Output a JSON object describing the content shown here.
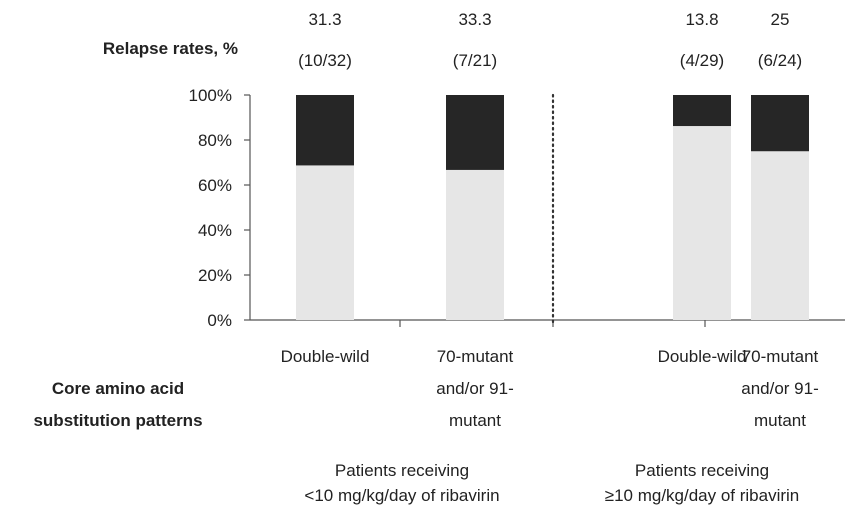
{
  "chart_data": {
    "type": "bar",
    "stacked": true,
    "y_axis": {
      "ticks": [
        "0%",
        "20%",
        "40%",
        "60%",
        "80%",
        "100%"
      ],
      "ylim": [
        0,
        100
      ],
      "grid": false
    },
    "relapse_row": {
      "title": "Relapse rates, %",
      "values": [
        "31.3",
        "33.3",
        "13.8",
        "25"
      ],
      "counts": [
        "(10/32)",
        "(7/21)",
        "(4/29)",
        "(6/24)"
      ]
    },
    "categories": [
      [
        "Double-wild"
      ],
      [
        "70-mutant",
        "and/or 91-",
        "mutant"
      ],
      [
        "Double-wild"
      ],
      [
        "70-mutant",
        "and/or 91-",
        "mutant"
      ]
    ],
    "category_axis_title": [
      "Core amino acid",
      "substitution patterns"
    ],
    "groups": [
      {
        "lines": [
          "Patients receiving",
          "<10 mg/kg/day of ribavirin"
        ],
        "category_indices": [
          0,
          1
        ]
      },
      {
        "lines": [
          "Patients receiving",
          "≥10 mg/kg/day of ribavirin"
        ],
        "category_indices": [
          2,
          3
        ]
      }
    ],
    "series": [
      {
        "values": [
          68.7,
          66.7,
          86.2,
          75
        ],
        "color": "#e6e6e6"
      },
      {
        "values": [
          31.3,
          33.3,
          13.8,
          25
        ],
        "color": "#262626"
      }
    ],
    "group_separator": "dotted",
    "legend": "none"
  }
}
